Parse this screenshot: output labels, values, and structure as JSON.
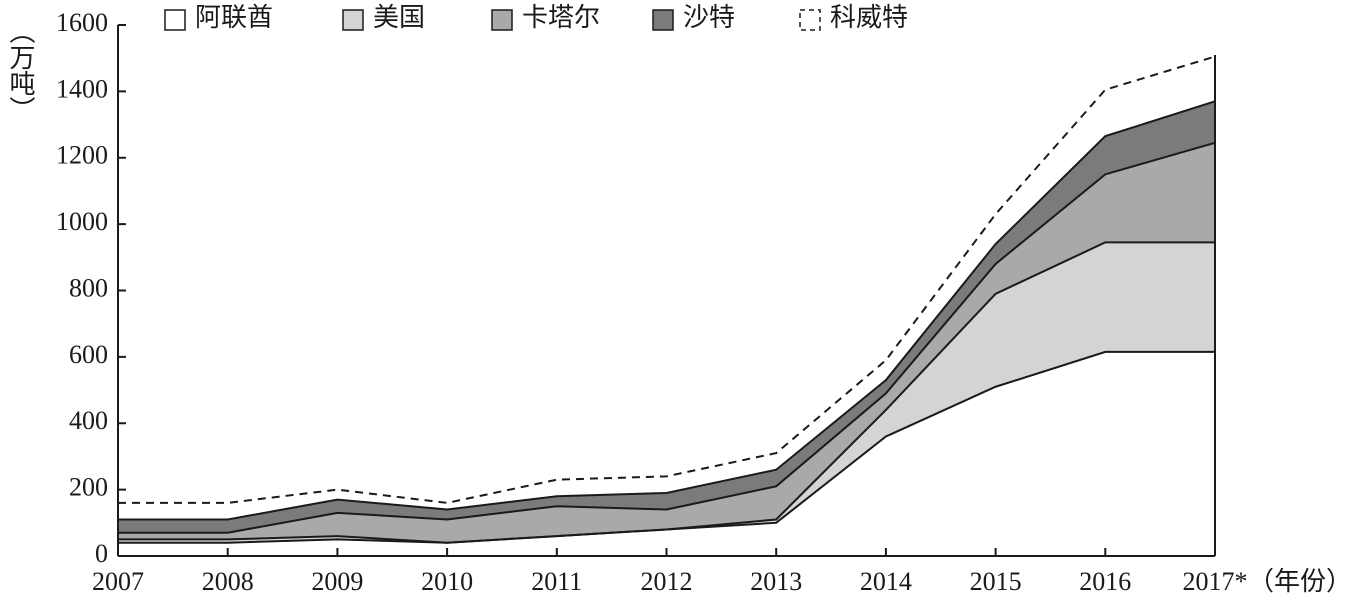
{
  "chart_data": {
    "type": "stacked_area",
    "y_label": "（万吨）",
    "x_label": "（年份）",
    "categories": [
      "2007",
      "2008",
      "2009",
      "2010",
      "2011",
      "2012",
      "2013",
      "2014",
      "2015",
      "2016",
      "2017*"
    ],
    "series": [
      {
        "name": "阿联酋",
        "color": "#ffffff",
        "values": [
          40,
          40,
          50,
          40,
          60,
          80,
          100,
          360,
          510,
          615,
          615
        ]
      },
      {
        "name": "美国",
        "color": "#d4d4d4",
        "values": [
          10,
          10,
          10,
          0,
          0,
          0,
          10,
          80,
          280,
          330,
          330
        ]
      },
      {
        "name": "卡塔尔",
        "color": "#a9a9a9",
        "values": [
          20,
          20,
          70,
          70,
          90,
          60,
          100,
          50,
          90,
          205,
          300
        ]
      },
      {
        "name": "沙特",
        "color": "#7b7b7b",
        "values": [
          40,
          40,
          40,
          30,
          30,
          50,
          50,
          40,
          60,
          115,
          125
        ]
      },
      {
        "name": "科威特",
        "color": "none",
        "dashed": true,
        "values": [
          50,
          50,
          30,
          20,
          50,
          50,
          50,
          60,
          90,
          140,
          135
        ]
      }
    ],
    "ylim": [
      0,
      1600
    ],
    "yticks": [
      0,
      200,
      400,
      600,
      800,
      1000,
      1200,
      1400,
      1600
    ],
    "grid": false
  }
}
